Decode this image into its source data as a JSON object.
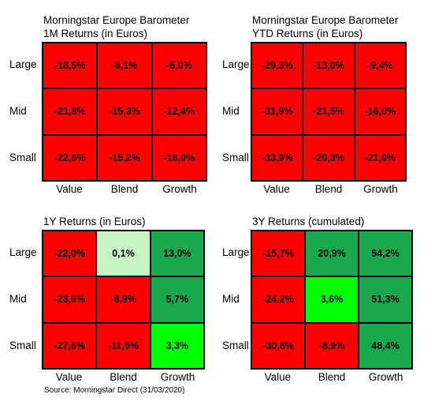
{
  "colors": {
    "red": "#ff0000",
    "dark_green": "#1aa84e",
    "light_green": "#c7f5c6",
    "bright_green": "#00ff00"
  },
  "source": "Source: Morningstar Direct (31/03/2020)",
  "chart_data": [
    {
      "type": "heatmap",
      "title": "Morningstar Europe Barometer",
      "subtitle": "1M Returns (in Euros)",
      "rows": [
        "Large",
        "Mid",
        "Small"
      ],
      "columns": [
        "Value",
        "Blend",
        "Growth"
      ],
      "values": [
        [
          "-18,5%",
          "-8,1%",
          "-6,0%"
        ],
        [
          "-21,8%",
          "-15,3%",
          "-12,4%"
        ],
        [
          "-22,6%",
          "-15,2%",
          "-16,0%"
        ]
      ],
      "cell_colors": [
        [
          "red",
          "red",
          "red"
        ],
        [
          "red",
          "red",
          "red"
        ],
        [
          "red",
          "red",
          "red"
        ]
      ]
    },
    {
      "type": "heatmap",
      "title": "Morningstar Europe Barometer",
      "subtitle": "YTD Returns (in Euros)",
      "rows": [
        "Large",
        "Mid",
        "Small"
      ],
      "columns": [
        "Value",
        "Blend",
        "Growth"
      ],
      "values": [
        [
          "-29,3%",
          "-13,0%",
          "-9,4%"
        ],
        [
          "-31,9%",
          "-21,5%",
          "-16,0%"
        ],
        [
          "-33,9%",
          "-20,3%",
          "-21,0%"
        ]
      ],
      "cell_colors": [
        [
          "red",
          "red",
          "red"
        ],
        [
          "red",
          "red",
          "red"
        ],
        [
          "red",
          "red",
          "red"
        ]
      ]
    },
    {
      "type": "heatmap",
      "title": "",
      "subtitle": "1Y Returns (in Euros)",
      "rows": [
        "Large",
        "Mid",
        "Small"
      ],
      "columns": [
        "Value",
        "Blend",
        "Growth"
      ],
      "values": [
        [
          "-22,0%",
          "0,1%",
          "13,0%"
        ],
        [
          "-23,6%",
          "-8,9%",
          "5,7%"
        ],
        [
          "-27,6%",
          "-11,5%",
          "3,3%"
        ]
      ],
      "cell_colors": [
        [
          "red",
          "light_green",
          "dark_green"
        ],
        [
          "red",
          "red",
          "dark_green"
        ],
        [
          "red",
          "red",
          "bright_green"
        ]
      ]
    },
    {
      "type": "heatmap",
      "title": "",
      "subtitle": "3Y Returns (cumulated)",
      "rows": [
        "Large",
        "Mid",
        "Small"
      ],
      "columns": [
        "Value",
        "Blend",
        "Growth"
      ],
      "values": [
        [
          "-15,7%",
          "20,9%",
          "54,2%"
        ],
        [
          "-24,2%",
          "3,6%",
          "51,3%"
        ],
        [
          "-30,8%",
          "-8,9%",
          "48,4%"
        ]
      ],
      "cell_colors": [
        [
          "red",
          "dark_green",
          "dark_green"
        ],
        [
          "red",
          "bright_green",
          "dark_green"
        ],
        [
          "red",
          "red",
          "dark_green"
        ]
      ]
    }
  ]
}
